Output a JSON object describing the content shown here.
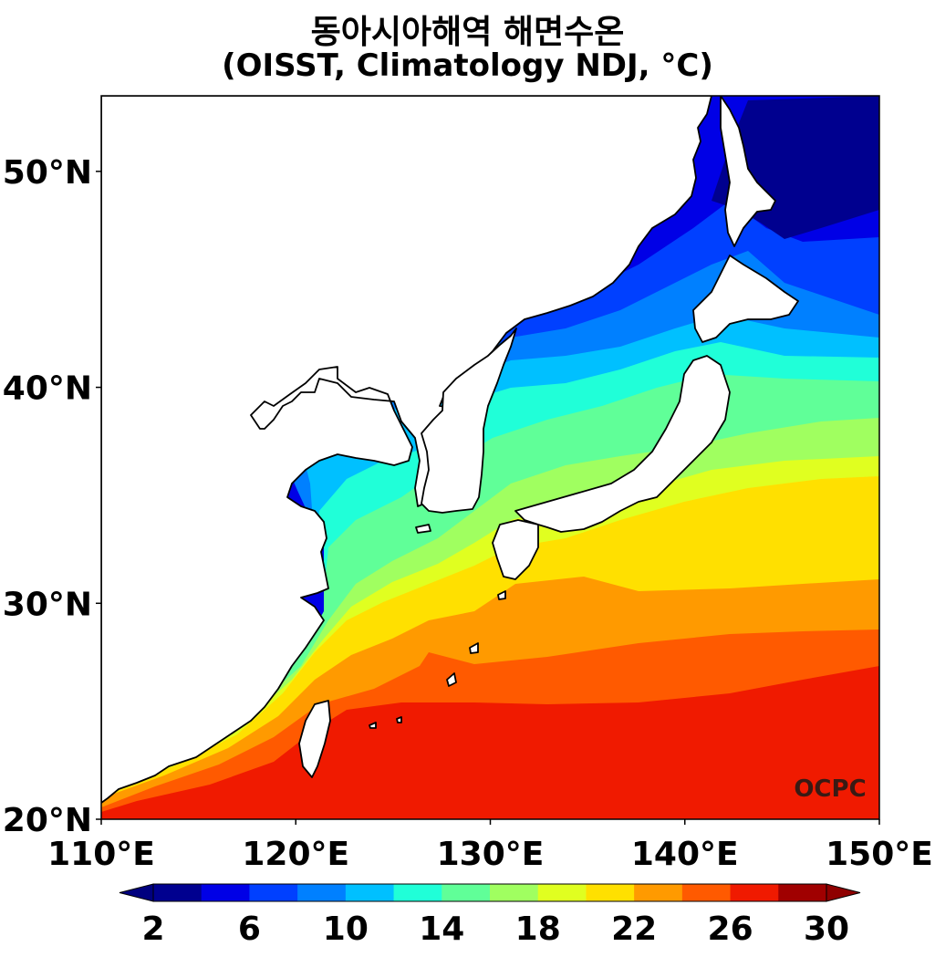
{
  "title": {
    "line1": "동아시아해역 해면수온",
    "line2": "(OISST, Climatology NDJ, °C)"
  },
  "map": {
    "lon_ticks": [
      "110°E",
      "120°E",
      "130°E",
      "140°E",
      "150°E"
    ],
    "lat_ticks": [
      "50°N",
      "40°N",
      "30°N",
      "20°N"
    ],
    "watermark": "OCPC",
    "land_color": "#ffffff",
    "coastline_color": "#000000"
  },
  "colorbar": {
    "tick_labels": [
      "2",
      "6",
      "10",
      "14",
      "18",
      "22",
      "26",
      "30"
    ],
    "levels": [
      2,
      4,
      6,
      8,
      10,
      12,
      14,
      16,
      18,
      20,
      22,
      24,
      26,
      28,
      30
    ],
    "colors": [
      "#00008f",
      "#0000e6",
      "#0040ff",
      "#0080ff",
      "#00c0ff",
      "#20ffd8",
      "#60ff98",
      "#a0ff60",
      "#e0ff20",
      "#ffe000",
      "#ff9a00",
      "#ff5a00",
      "#f01a00",
      "#a00000"
    ],
    "under_color": "#00007f",
    "over_color": "#8f0000"
  }
}
